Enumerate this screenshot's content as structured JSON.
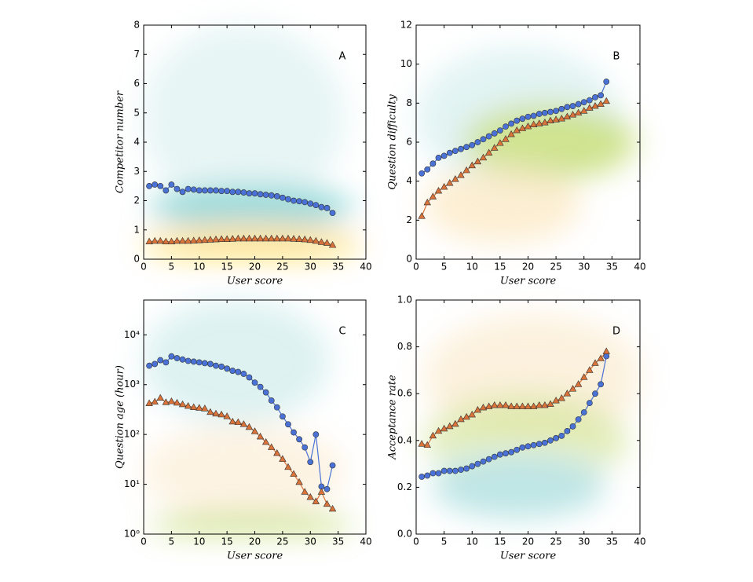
{
  "chart_data": [
    {
      "type": "line",
      "xlabel": "User score",
      "ylabel": "Competitor number",
      "annotation": "A",
      "x": [
        1,
        2,
        3,
        4,
        5,
        6,
        7,
        8,
        9,
        10,
        11,
        12,
        13,
        14,
        15,
        16,
        17,
        18,
        19,
        20,
        21,
        22,
        23,
        24,
        25,
        26,
        27,
        28,
        29,
        30,
        31,
        32,
        33,
        34
      ],
      "xlim": [
        0,
        40
      ],
      "xticks": [
        0,
        5,
        10,
        15,
        20,
        25,
        30,
        35,
        40
      ],
      "ylim": [
        0,
        8
      ],
      "yticks": [
        0,
        1,
        2,
        3,
        4,
        5,
        6,
        7,
        8
      ],
      "series": [
        {
          "color": "#4a72d6",
          "marker": "circle",
          "values": [
            2.5,
            2.55,
            2.5,
            2.35,
            2.55,
            2.4,
            2.3,
            2.4,
            2.38,
            2.35,
            2.35,
            2.35,
            2.35,
            2.33,
            2.33,
            2.3,
            2.3,
            2.28,
            2.25,
            2.25,
            2.22,
            2.2,
            2.18,
            2.15,
            2.1,
            2.05,
            2.0,
            1.98,
            1.95,
            1.9,
            1.85,
            1.78,
            1.75,
            1.58
          ]
        },
        {
          "color": "#d9733a",
          "marker": "triangle",
          "values": [
            0.6,
            0.62,
            0.62,
            0.6,
            0.6,
            0.62,
            0.62,
            0.62,
            0.63,
            0.64,
            0.65,
            0.66,
            0.67,
            0.68,
            0.68,
            0.69,
            0.7,
            0.7,
            0.7,
            0.7,
            0.7,
            0.7,
            0.7,
            0.7,
            0.7,
            0.7,
            0.69,
            0.68,
            0.67,
            0.65,
            0.62,
            0.58,
            0.55,
            0.48
          ]
        }
      ]
    },
    {
      "type": "line",
      "xlabel": "User score",
      "ylabel": "Question difficulty",
      "annotation": "B",
      "x": [
        1,
        2,
        3,
        4,
        5,
        6,
        7,
        8,
        9,
        10,
        11,
        12,
        13,
        14,
        15,
        16,
        17,
        18,
        19,
        20,
        21,
        22,
        23,
        24,
        25,
        26,
        27,
        28,
        29,
        30,
        31,
        32,
        33,
        34
      ],
      "xlim": [
        0,
        40
      ],
      "xticks": [
        0,
        5,
        10,
        15,
        20,
        25,
        30,
        35,
        40
      ],
      "ylim": [
        0,
        12
      ],
      "yticks": [
        0,
        2,
        4,
        6,
        8,
        10,
        12
      ],
      "series": [
        {
          "color": "#4a72d6",
          "marker": "circle",
          "values": [
            4.4,
            4.6,
            4.9,
            5.2,
            5.3,
            5.45,
            5.55,
            5.65,
            5.75,
            5.85,
            6.0,
            6.15,
            6.3,
            6.45,
            6.6,
            6.8,
            6.95,
            7.1,
            7.2,
            7.3,
            7.35,
            7.45,
            7.5,
            7.55,
            7.6,
            7.7,
            7.8,
            7.85,
            7.95,
            8.05,
            8.15,
            8.3,
            8.4,
            9.1
          ]
        },
        {
          "color": "#d9733a",
          "marker": "triangle",
          "values": [
            2.2,
            2.9,
            3.2,
            3.5,
            3.7,
            3.9,
            4.1,
            4.3,
            4.55,
            4.8,
            5.0,
            5.2,
            5.45,
            5.7,
            5.95,
            6.15,
            6.4,
            6.6,
            6.7,
            6.8,
            6.9,
            6.95,
            7.0,
            7.1,
            7.15,
            7.2,
            7.3,
            7.4,
            7.5,
            7.6,
            7.75,
            7.85,
            7.95,
            8.1
          ]
        }
      ]
    },
    {
      "type": "line",
      "xlabel": "User score",
      "ylabel": "Question age (hour)",
      "annotation": "C",
      "x": [
        1,
        2,
        3,
        4,
        5,
        6,
        7,
        8,
        9,
        10,
        11,
        12,
        13,
        14,
        15,
        16,
        17,
        18,
        19,
        20,
        21,
        22,
        23,
        24,
        25,
        26,
        27,
        28,
        29,
        30,
        31,
        32,
        33,
        34
      ],
      "xlim": [
        0,
        40
      ],
      "xticks": [
        0,
        5,
        10,
        15,
        20,
        25,
        30,
        35,
        40
      ],
      "ylim": [
        1,
        50000
      ],
      "yscale": "log",
      "yticks": [
        {
          "value": 1,
          "label": "10⁰"
        },
        {
          "value": 10,
          "label": "10¹"
        },
        {
          "value": 100,
          "label": "10²"
        },
        {
          "value": 1000,
          "label": "10³"
        },
        {
          "value": 10000,
          "label": "10⁴"
        }
      ],
      "series": [
        {
          "color": "#4a72d6",
          "marker": "circle",
          "values": [
            2400,
            2600,
            3100,
            2800,
            3700,
            3400,
            3200,
            3000,
            2900,
            2800,
            2700,
            2600,
            2400,
            2300,
            2100,
            1900,
            1800,
            1650,
            1400,
            1100,
            900,
            700,
            480,
            350,
            230,
            160,
            110,
            80,
            55,
            28,
            100,
            9,
            8,
            24
          ]
        },
        {
          "color": "#d9733a",
          "marker": "triangle",
          "values": [
            420,
            450,
            540,
            440,
            460,
            430,
            400,
            370,
            350,
            340,
            330,
            280,
            260,
            250,
            230,
            180,
            175,
            160,
            140,
            115,
            90,
            70,
            55,
            42,
            32,
            22,
            16,
            11,
            7,
            5.5,
            4.5,
            7,
            4,
            3.2
          ]
        }
      ]
    },
    {
      "type": "line",
      "xlabel": "User score",
      "ylabel": "Acceptance rate",
      "annotation": "D",
      "x": [
        1,
        2,
        3,
        4,
        5,
        6,
        7,
        8,
        9,
        10,
        11,
        12,
        13,
        14,
        15,
        16,
        17,
        18,
        19,
        20,
        21,
        22,
        23,
        24,
        25,
        26,
        27,
        28,
        29,
        30,
        31,
        32,
        33,
        34
      ],
      "xlim": [
        0,
        40
      ],
      "xticks": [
        0,
        5,
        10,
        15,
        20,
        25,
        30,
        35,
        40
      ],
      "ylim": [
        0,
        1
      ],
      "yticks": [
        {
          "value": 0,
          "label": "0.0"
        },
        0.2,
        0.4,
        0.6,
        0.8,
        {
          "value": 1,
          "label": "1.0"
        }
      ],
      "series": [
        {
          "color": "#4a72d6",
          "marker": "circle",
          "values": [
            0.245,
            0.25,
            0.26,
            0.26,
            0.27,
            0.27,
            0.27,
            0.275,
            0.28,
            0.29,
            0.3,
            0.31,
            0.32,
            0.33,
            0.34,
            0.345,
            0.35,
            0.36,
            0.37,
            0.375,
            0.38,
            0.385,
            0.39,
            0.4,
            0.41,
            0.42,
            0.44,
            0.46,
            0.49,
            0.52,
            0.56,
            0.6,
            0.64,
            0.76
          ]
        },
        {
          "color": "#d9733a",
          "marker": "triangle",
          "values": [
            0.385,
            0.38,
            0.42,
            0.44,
            0.45,
            0.46,
            0.47,
            0.49,
            0.5,
            0.51,
            0.53,
            0.54,
            0.545,
            0.55,
            0.55,
            0.55,
            0.545,
            0.545,
            0.545,
            0.545,
            0.545,
            0.55,
            0.55,
            0.555,
            0.57,
            0.58,
            0.6,
            0.62,
            0.64,
            0.67,
            0.7,
            0.73,
            0.75,
            0.78
          ]
        }
      ]
    }
  ]
}
